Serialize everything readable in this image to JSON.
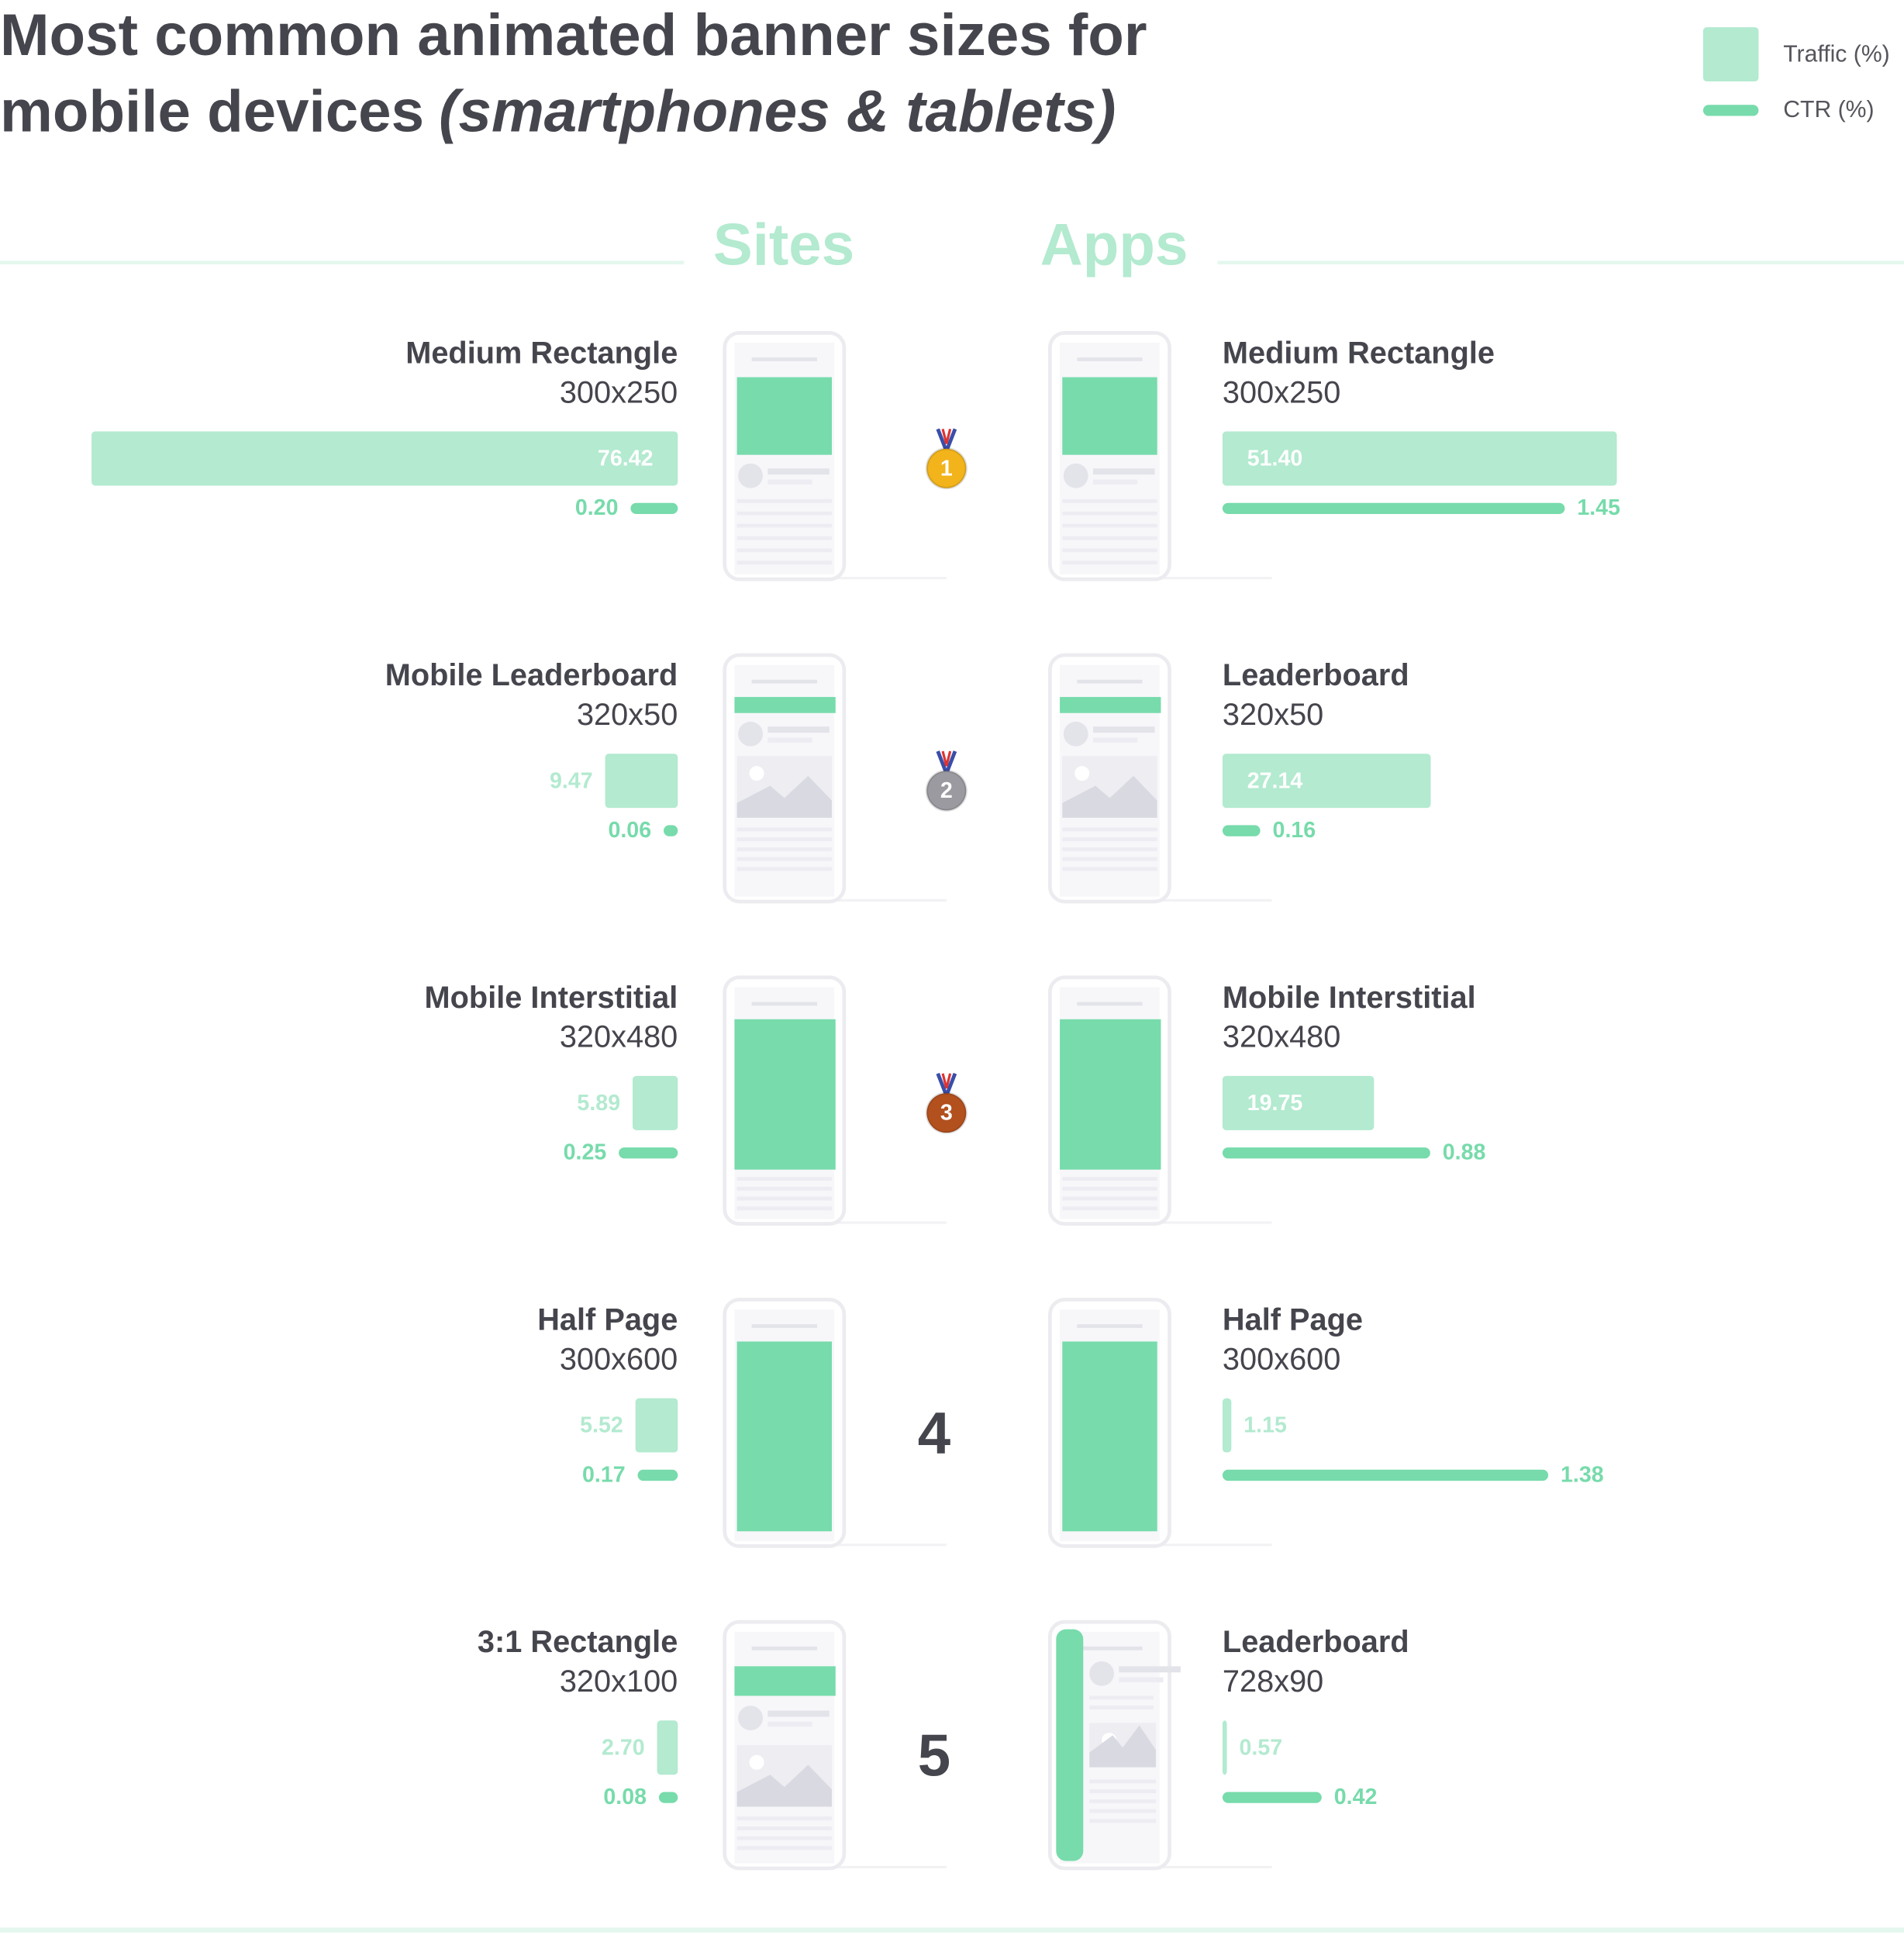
{
  "title": [
    "Most common animated banner sizes for",
    "mobile devices"
  ],
  "title_italic": "(smartphones & tablets)",
  "ranks": [
    1,
    2,
    3,
    4,
    5
  ],
  "chart_data": [
    {
      "type": "bar",
      "title": "Sites",
      "direction": "left",
      "categories": [
        "Medium Rectangle",
        "Mobile Leaderboard",
        "Mobile Interstitial",
        "Half Page",
        "3:1 Rectangle"
      ],
      "sizes": [
        "300x250",
        "320x50",
        "320x480",
        "300x600",
        "320x100"
      ],
      "xlim": [
        0,
        80
      ],
      "x2lim": [
        0,
        2.6
      ],
      "series": [
        {
          "name": "Traffic (%)",
          "color": "#b3ead0",
          "values": [
            76.42,
            9.47,
            5.89,
            5.52,
            2.7
          ],
          "value_labels": [
            "76.42",
            "9.47",
            "5.89",
            "5.52",
            "2.70"
          ]
        },
        {
          "name": "CTR (%)",
          "color": "#77dbab",
          "axis": "x2",
          "values": [
            0.2,
            0.06,
            0.25,
            0.17,
            0.08
          ],
          "value_labels": [
            "0.20",
            "0.06",
            "0.25",
            "0.17",
            "0.08"
          ]
        }
      ]
    },
    {
      "type": "bar",
      "title": "Apps",
      "direction": "right",
      "categories": [
        "Medium Rectangle",
        "Leaderboard",
        "Mobile Interstitial",
        "Half Page",
        "Leaderboard"
      ],
      "sizes": [
        "300x250",
        "320x50",
        "320x480",
        "300x600",
        "728x90"
      ],
      "xlim": [
        0,
        80
      ],
      "x2lim": [
        0,
        2.6
      ],
      "series": [
        {
          "color": "#b3ead0",
          "values": [
            51.4,
            27.14,
            19.75,
            1.15,
            0.57
          ],
          "value_labels": [
            "51.40",
            "27.14",
            "19.75",
            "1.15",
            "0.57"
          ]
        },
        {
          "color": "#77dbab",
          "axis": "x2",
          "values": [
            1.45,
            0.16,
            0.88,
            1.38,
            0.42
          ],
          "value_labels": [
            "1.45",
            "0.16",
            "0.88",
            "1.38",
            "0.42"
          ]
        }
      ]
    }
  ]
}
